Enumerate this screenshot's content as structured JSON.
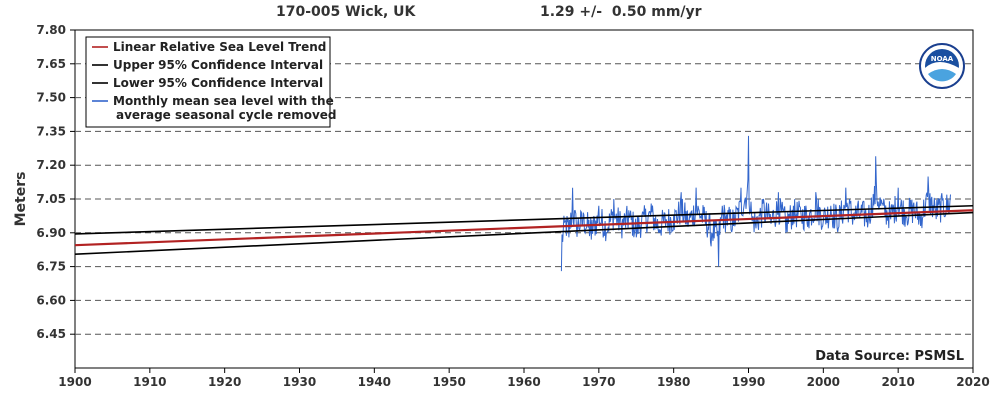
{
  "header": {
    "station": "170-005 Wick, UK",
    "trend": "1.29 +/-  0.50 mm/yr"
  },
  "source_note": "Data Source: PSMSL",
  "logo_text": "NOAA",
  "colors": {
    "trend": "#b22222",
    "ci": "#000000",
    "monthly": "#3366cc",
    "grid": "#555555"
  },
  "chart_data": {
    "type": "line",
    "ylabel": "Meters",
    "xlabel": "",
    "xlim": [
      1900,
      2020
    ],
    "ylim": [
      6.3,
      7.8
    ],
    "x_ticks": [
      "1900",
      "1910",
      "1920",
      "1930",
      "1940",
      "1950",
      "1960",
      "1970",
      "1980",
      "1990",
      "2000",
      "2010",
      "2020"
    ],
    "y_ticks": [
      "6.45",
      "6.60",
      "6.75",
      "6.90",
      "7.05",
      "7.20",
      "7.35",
      "7.50",
      "7.65",
      "7.80"
    ],
    "grid": "horizontal dashed",
    "legend_position": "top-left",
    "series": [
      {
        "name": "Linear Relative Sea Level Trend",
        "kind": "line",
        "x": [
          1900,
          2020
        ],
        "y": [
          6.845,
          7.0
        ]
      },
      {
        "name": "Upper 95% Confidence Interval",
        "kind": "line",
        "x": [
          1900,
          2020
        ],
        "y": [
          6.895,
          7.02
        ]
      },
      {
        "name": "Lower 95% Confidence Interval",
        "kind": "line",
        "x": [
          1900,
          2020
        ],
        "y": [
          6.805,
          6.99
        ]
      },
      {
        "name": "Monthly mean sea level with the\naverage seasonal cycle removed",
        "kind": "monthly",
        "x": [
          1965.0,
          1965.5,
          1966.0,
          1966.5,
          1967.0,
          1968.0,
          1969.0,
          1970.0,
          1971.0,
          1972.0,
          1973.0,
          1974.0,
          1975.0,
          1976.0,
          1977.0,
          1978.0,
          1979.0,
          1980.0,
          1981.0,
          1982.0,
          1983.0,
          1984.0,
          1985.0,
          1986.0,
          1986.5,
          1987.0,
          1988.0,
          1989.0,
          1990.0,
          1990.5,
          1991.0,
          1992.0,
          1993.0,
          1994.0,
          1995.0,
          1996.0,
          1997.0,
          1998.0,
          1999.0,
          2000.0,
          2001.0,
          2002.0,
          2003.0,
          2004.0,
          2005.0,
          2006.0,
          2007.0,
          2008.0,
          2009.0,
          2010.0,
          2011.0,
          2012.0,
          2013.0,
          2014.0,
          2015.0,
          2016.0,
          2017.0
        ],
        "y": [
          6.73,
          6.95,
          6.88,
          7.1,
          6.93,
          6.98,
          6.87,
          7.02,
          6.9,
          7.05,
          6.93,
          7.0,
          6.88,
          6.98,
          7.03,
          6.9,
          6.96,
          6.98,
          7.08,
          6.95,
          7.1,
          6.98,
          6.84,
          6.75,
          7.02,
          6.97,
          6.93,
          7.1,
          7.33,
          6.95,
          6.92,
          7.05,
          6.94,
          7.08,
          6.9,
          7.02,
          6.99,
          6.97,
          7.08,
          6.95,
          7.02,
          6.92,
          7.1,
          6.98,
          6.99,
          6.95,
          7.24,
          7.02,
          6.96,
          7.1,
          6.98,
          7.02,
          6.93,
          7.15,
          7.0,
          7.05,
          7.07
        ]
      }
    ]
  }
}
